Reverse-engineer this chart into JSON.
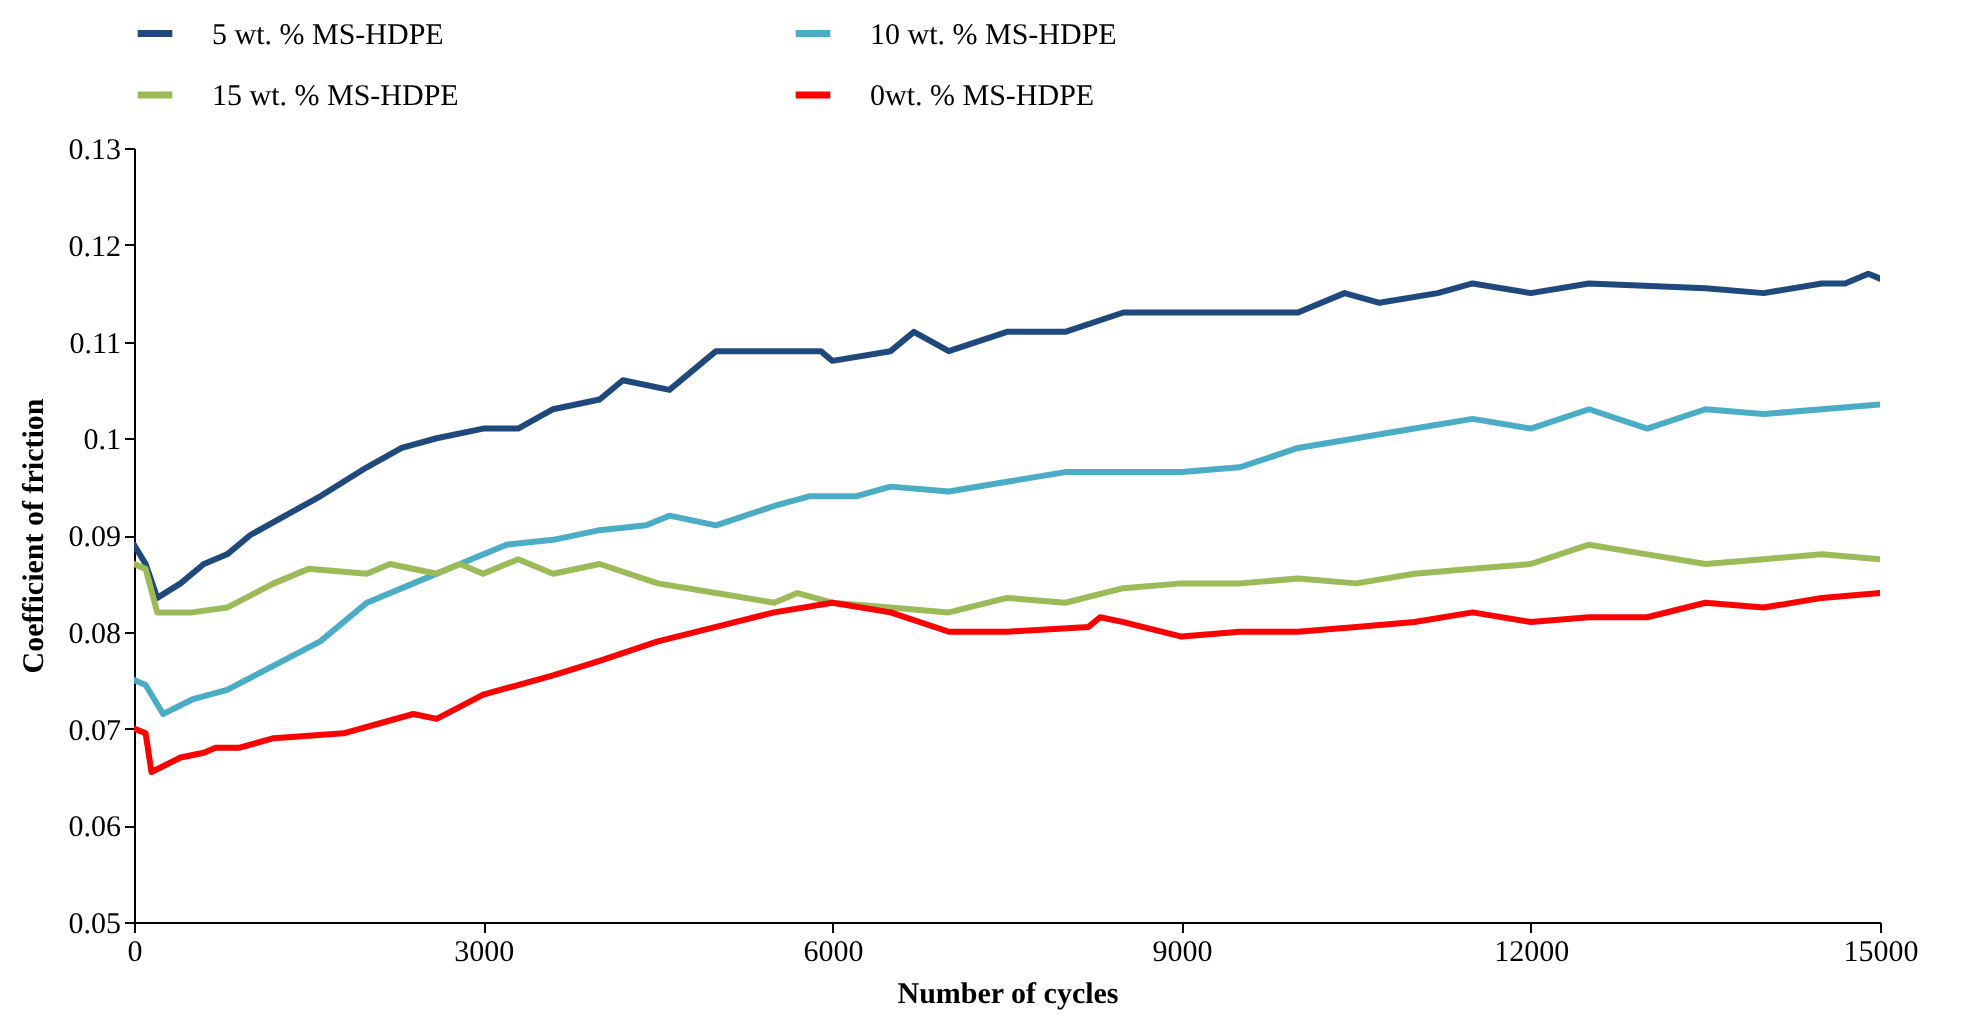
{
  "chart_data": {
    "type": "line",
    "xlabel": "Number of cycles",
    "ylabel": "Coefficient of friction",
    "xlim": [
      0,
      15000
    ],
    "xticks": [
      0,
      3000,
      6000,
      9000,
      12000,
      15000
    ],
    "ylim": [
      0.05,
      0.13
    ],
    "yticks": [
      0.05,
      0.06,
      0.07,
      0.08,
      0.09,
      0.1,
      0.11,
      0.12,
      0.13
    ],
    "grid": false,
    "legend": "top",
    "line_style": "solid",
    "series": [
      {
        "name": "5 wt. % MS-HDPE",
        "color": "#1f497d",
        "x": [
          0,
          100,
          200,
          400,
          600,
          800,
          1000,
          1300,
          1600,
          2000,
          2300,
          2600,
          3000,
          3300,
          3600,
          4000,
          4200,
          4600,
          5000,
          5500,
          5900,
          6000,
          6500,
          6700,
          7000,
          7500,
          8000,
          8500,
          9000,
          9500,
          10000,
          10400,
          10700,
          11200,
          11500,
          12000,
          12500,
          13500,
          14000,
          14500,
          14700,
          14900,
          15000
        ],
        "values": [
          0.089,
          0.087,
          0.0835,
          0.085,
          0.087,
          0.088,
          0.09,
          0.092,
          0.094,
          0.097,
          0.099,
          0.1,
          0.101,
          0.101,
          0.103,
          0.104,
          0.106,
          0.105,
          0.109,
          0.109,
          0.109,
          0.108,
          0.109,
          0.111,
          0.109,
          0.111,
          0.111,
          0.113,
          0.113,
          0.113,
          0.113,
          0.115,
          0.114,
          0.115,
          0.116,
          0.115,
          0.116,
          0.1155,
          0.115,
          0.116,
          0.116,
          0.117,
          0.1165
        ]
      },
      {
        "name": "10 wt. % MS-HDPE",
        "color": "#4bacc6",
        "x": [
          0,
          100,
          250,
          500,
          800,
          1200,
          1600,
          2000,
          2400,
          2800,
          3200,
          3600,
          4000,
          4400,
          4600,
          5000,
          5500,
          5800,
          6200,
          6500,
          7000,
          7500,
          8000,
          8500,
          9000,
          9500,
          10000,
          10500,
          11000,
          11500,
          12000,
          12500,
          13000,
          13500,
          14000,
          14500,
          15000
        ],
        "values": [
          0.075,
          0.0745,
          0.0715,
          0.073,
          0.074,
          0.0765,
          0.079,
          0.083,
          0.085,
          0.087,
          0.089,
          0.0895,
          0.0905,
          0.091,
          0.092,
          0.091,
          0.093,
          0.094,
          0.094,
          0.095,
          0.0945,
          0.0955,
          0.0965,
          0.0965,
          0.0965,
          0.097,
          0.099,
          0.1,
          0.101,
          0.102,
          0.101,
          0.103,
          0.101,
          0.103,
          0.1025,
          0.103,
          0.1035
        ]
      },
      {
        "name": "15 wt. % MS-HDPE",
        "color": "#9bbb59",
        "x": [
          0,
          100,
          200,
          500,
          800,
          1200,
          1500,
          2000,
          2200,
          2600,
          2800,
          3000,
          3300,
          3600,
          4000,
          4500,
          5000,
          5500,
          5700,
          6000,
          6500,
          7000,
          7500,
          8000,
          8500,
          9000,
          9500,
          10000,
          10500,
          11000,
          11500,
          12000,
          12500,
          13000,
          13500,
          14000,
          14500,
          15000
        ],
        "values": [
          0.087,
          0.0865,
          0.082,
          0.082,
          0.0825,
          0.085,
          0.0865,
          0.086,
          0.087,
          0.086,
          0.087,
          0.086,
          0.0875,
          0.086,
          0.087,
          0.085,
          0.084,
          0.083,
          0.084,
          0.083,
          0.0825,
          0.082,
          0.0835,
          0.083,
          0.0845,
          0.085,
          0.085,
          0.0855,
          0.085,
          0.086,
          0.0865,
          0.087,
          0.089,
          0.088,
          0.087,
          0.0875,
          0.088,
          0.0875
        ]
      },
      {
        "name": "0wt. % MS-HDPE",
        "color": "#ff0000",
        "x": [
          0,
          100,
          150,
          400,
          600,
          700,
          900,
          1200,
          1800,
          2400,
          2600,
          3000,
          3600,
          4000,
          4500,
          5000,
          5500,
          6000,
          6500,
          7000,
          7500,
          8200,
          8300,
          8500,
          9000,
          9500,
          10000,
          10500,
          11000,
          11500,
          12000,
          12500,
          13000,
          13500,
          14000,
          14500,
          15000
        ],
        "values": [
          0.07,
          0.0695,
          0.0655,
          0.067,
          0.0675,
          0.068,
          0.068,
          0.069,
          0.0695,
          0.0715,
          0.071,
          0.0735,
          0.0755,
          0.077,
          0.079,
          0.0805,
          0.082,
          0.083,
          0.082,
          0.08,
          0.08,
          0.0805,
          0.0815,
          0.081,
          0.0795,
          0.08,
          0.08,
          0.0805,
          0.081,
          0.082,
          0.081,
          0.0815,
          0.0815,
          0.083,
          0.0825,
          0.0835,
          0.084
        ]
      }
    ]
  }
}
